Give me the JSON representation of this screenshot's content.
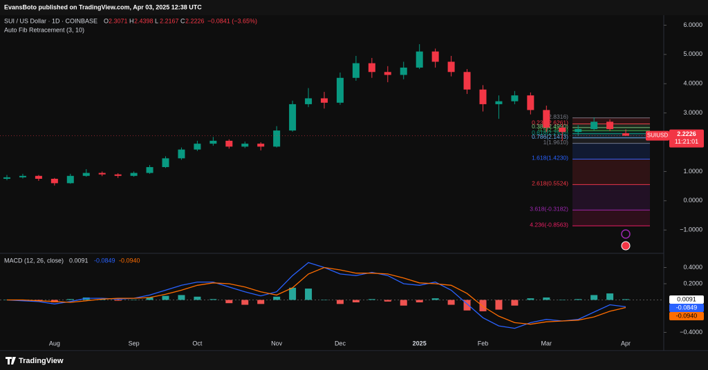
{
  "header": {
    "publisher": "EvansBoto published on TradingView.com, Apr 03, 2025 12:38 UTC"
  },
  "footer": {
    "brand": "TradingView"
  },
  "chart_data": [
    {
      "type": "candlestick",
      "title": "SUI / US Dollar · 1D · COINBASE",
      "ohlc_keys": [
        "O",
        "H",
        "L",
        "C"
      ],
      "change": "−0.0841 (−3.65%)",
      "indicator": "Auto Fib Retracement (3, 10)",
      "symbol": "SUIUSD",
      "countdown": "11:21:01",
      "categories": [
        null,
        null,
        null,
        "Aug",
        null,
        null,
        null,
        null,
        "Sep",
        null,
        null,
        null,
        "Oct",
        null,
        null,
        null,
        null,
        "Nov",
        null,
        null,
        null,
        "Dec",
        null,
        null,
        null,
        null,
        "2025",
        null,
        null,
        null,
        "Feb",
        null,
        null,
        null,
        "Mar",
        null,
        null,
        null,
        null,
        "Apr"
      ],
      "open": [
        0.75,
        0.8,
        0.85,
        0.75,
        0.6,
        0.85,
        0.95,
        0.9,
        0.85,
        0.95,
        1.15,
        1.45,
        1.75,
        1.95,
        2.05,
        1.85,
        1.95,
        1.85,
        2.4,
        3.3,
        3.5,
        3.35,
        4.2,
        4.7,
        4.4,
        4.3,
        4.55,
        5.1,
        4.75,
        4.4,
        3.8,
        3.3,
        3.4,
        3.6,
        3.1,
        2.5,
        2.35,
        2.45,
        2.7,
        2.3071
      ],
      "high": [
        0.88,
        0.92,
        0.88,
        0.78,
        0.92,
        1.08,
        1.0,
        0.94,
        1.0,
        1.22,
        1.52,
        1.82,
        2.05,
        2.18,
        2.1,
        2.02,
        2.0,
        2.55,
        3.42,
        3.85,
        3.72,
        4.38,
        4.95,
        4.88,
        4.6,
        4.75,
        5.35,
        5.2,
        4.95,
        4.5,
        3.95,
        3.6,
        3.75,
        3.7,
        3.25,
        2.62,
        2.58,
        2.85,
        2.78,
        2.4398
      ],
      "low": [
        0.7,
        0.76,
        0.68,
        0.52,
        0.58,
        0.82,
        0.84,
        0.78,
        0.82,
        0.92,
        1.12,
        1.4,
        1.7,
        1.88,
        1.78,
        1.8,
        1.72,
        1.82,
        2.36,
        3.2,
        3.15,
        3.28,
        4.1,
        4.2,
        4.05,
        4.15,
        4.5,
        4.55,
        4.25,
        3.65,
        3.05,
        2.8,
        3.3,
        2.95,
        2.35,
        2.05,
        2.22,
        2.4,
        2.38,
        2.2167
      ],
      "close": [
        0.8,
        0.85,
        0.75,
        0.6,
        0.85,
        0.95,
        0.9,
        0.85,
        0.95,
        1.15,
        1.45,
        1.75,
        1.95,
        2.05,
        1.85,
        1.95,
        1.85,
        2.4,
        3.3,
        3.5,
        3.35,
        4.2,
        4.7,
        4.4,
        4.3,
        4.55,
        5.1,
        4.75,
        4.4,
        3.8,
        3.3,
        3.4,
        3.6,
        3.1,
        2.5,
        2.35,
        2.45,
        2.7,
        2.45,
        2.2226
      ],
      "up_color": "#089981",
      "down_color": "#f23645",
      "ylim": [
        -1.75,
        6.86
      ],
      "yticks": [
        {
          "value": 6,
          "label": "6.0000"
        },
        {
          "value": 5,
          "label": "5.0000"
        },
        {
          "value": 4,
          "label": "4.0000"
        },
        {
          "value": 3,
          "label": "3.0000"
        },
        {
          "value": 1,
          "label": "1.0000"
        },
        {
          "value": 0,
          "label": "0.0000"
        },
        {
          "value": -1,
          "label": "−1.0000"
        }
      ],
      "grid": false,
      "fib": [
        {
          "label": "0(2.8316)",
          "value": 2.8316,
          "color": "#787b86"
        },
        {
          "label": "0.236(2.6261)",
          "value": 2.6261,
          "color": "#f23645"
        },
        {
          "label": "0.382(2.4990)",
          "value": 2.499,
          "color": "#81c784"
        },
        {
          "label": "0.5(2.3963)",
          "value": 2.3963,
          "color": "#4caf50"
        },
        {
          "label": "0.618(2.2936)",
          "value": 2.2936,
          "color": "#089981"
        },
        {
          "label": "0.786(2.1473)",
          "value": 2.1473,
          "color": "#64b5f6"
        },
        {
          "label": "1(1.9610)",
          "value": 1.961,
          "color": "#787b86"
        },
        {
          "label": "1.618(1.4230)",
          "value": 1.423,
          "color": "#2962ff"
        },
        {
          "label": "2.618(0.5524)",
          "value": 0.5524,
          "color": "#f23645"
        },
        {
          "label": "3.618(-0.3182)",
          "value": -0.3182,
          "color": "#9c27b0"
        },
        {
          "label": "4.236(-0.8563)",
          "value": -0.8563,
          "color": "#e91e63"
        }
      ]
    },
    {
      "type": "macd",
      "title": "MACD (12, 26, close)",
      "last_labels": [
        "0.0091",
        "-0.0849",
        "-0.0940"
      ],
      "histogram": [
        0,
        -0.01,
        -0.01,
        -0.03,
        0.01,
        0.03,
        0.01,
        -0.01,
        0,
        0.03,
        0.05,
        0.06,
        0.04,
        0.01,
        -0.04,
        -0.06,
        -0.05,
        0.04,
        0.15,
        0.14,
        0,
        -0.05,
        -0.03,
        0.01,
        -0.02,
        -0.07,
        -0.03,
        0.02,
        -0.06,
        -0.13,
        -0.14,
        -0.12,
        -0.07,
        0.02,
        0.03,
        0,
        0.01,
        0.06,
        0.08,
        0.0091
      ],
      "macd": [
        0,
        -0.01,
        -0.02,
        -0.05,
        -0.02,
        0.02,
        0.02,
        0.01,
        0.02,
        0.06,
        0.12,
        0.18,
        0.22,
        0.22,
        0.16,
        0.1,
        0.05,
        0.1,
        0.3,
        0.46,
        0.4,
        0.32,
        0.3,
        0.34,
        0.3,
        0.2,
        0.18,
        0.22,
        0.12,
        -0.05,
        -0.22,
        -0.32,
        -0.35,
        -0.28,
        -0.24,
        -0.26,
        -0.24,
        -0.15,
        -0.06,
        -0.0849
      ],
      "signal": [
        0,
        0,
        -0.01,
        -0.02,
        -0.03,
        -0.01,
        0.01,
        0.02,
        0.02,
        0.03,
        0.07,
        0.12,
        0.18,
        0.21,
        0.2,
        0.16,
        0.1,
        0.06,
        0.15,
        0.32,
        0.4,
        0.37,
        0.33,
        0.33,
        0.32,
        0.27,
        0.21,
        0.2,
        0.18,
        0.08,
        -0.08,
        -0.2,
        -0.28,
        -0.3,
        -0.27,
        -0.26,
        -0.25,
        -0.21,
        -0.14,
        -0.094
      ],
      "hist_up_color": "#26a69a",
      "hist_down_color": "#ef5350",
      "macd_color": "#2962ff",
      "signal_color": "#ff6d00",
      "ylim": [
        -0.626,
        0.566
      ],
      "yticks": [
        {
          "value": 0.4,
          "label": "0.4000"
        },
        {
          "value": 0.2,
          "label": "0.2000"
        },
        {
          "value": -0.4,
          "label": "−0.4000"
        }
      ],
      "grid": false
    }
  ]
}
